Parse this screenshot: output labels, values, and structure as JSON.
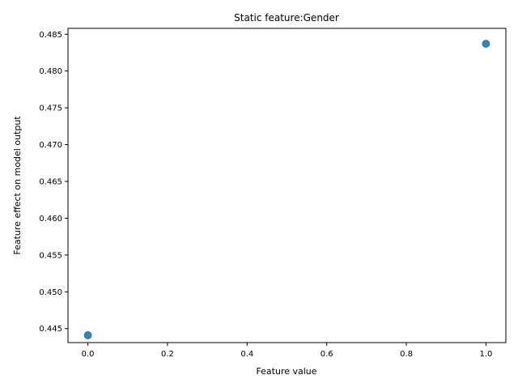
{
  "chart_data": {
    "type": "scatter",
    "title": "Static feature:Gender",
    "xlabel": "Feature value",
    "ylabel": "Feature effect on model output",
    "xlim": [
      -0.05,
      1.05
    ],
    "ylim": [
      0.4431,
      0.4858
    ],
    "xticks": [
      0.0,
      0.2,
      0.4,
      0.6,
      0.8,
      1.0
    ],
    "xtick_labels": [
      "0.0",
      "0.2",
      "0.4",
      "0.6",
      "0.8",
      "1.0"
    ],
    "yticks": [
      0.445,
      0.45,
      0.455,
      0.46,
      0.465,
      0.47,
      0.475,
      0.48,
      0.485
    ],
    "ytick_labels": [
      "0.445",
      "0.450",
      "0.455",
      "0.460",
      "0.465",
      "0.470",
      "0.475",
      "0.480",
      "0.485"
    ],
    "points": [
      {
        "x": 0.0,
        "y": 0.4441
      },
      {
        "x": 1.0,
        "y": 0.4837
      }
    ],
    "marker_color": "#1f77b4",
    "grid": false,
    "legend": "none"
  }
}
